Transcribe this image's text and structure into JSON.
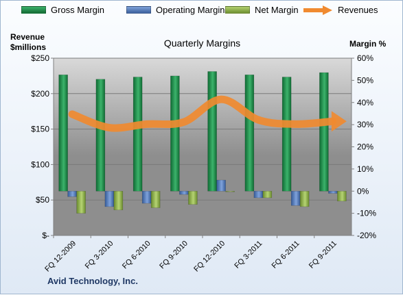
{
  "chart_data": {
    "type": "bar",
    "title": "Quarterly Margins",
    "ylabel_left": "Revenue\n$millions",
    "ylabel_right": "Margin %",
    "categories": [
      "FQ 12-2009",
      "FQ 3-2010",
      "FQ 6-2010",
      "FQ 9-2010",
      "FQ 12-2010",
      "FQ 3-2011",
      "FQ 6-2011",
      "FQ 9-2011"
    ],
    "y_left": {
      "min": 0,
      "max": 250,
      "ticks": [
        0,
        50,
        100,
        150,
        200,
        250
      ],
      "tick_labels": [
        "$-",
        "$50",
        "$100",
        "$150",
        "$200",
        "$250"
      ]
    },
    "y_right": {
      "min": -20,
      "max": 60,
      "ticks": [
        -20,
        -10,
        0,
        10,
        20,
        30,
        40,
        50,
        60
      ],
      "tick_labels": [
        "-20%",
        "-10%",
        "0%",
        "10%",
        "20%",
        "30%",
        "40%",
        "50%",
        "60%"
      ]
    },
    "series": [
      {
        "name": "Gross Margin",
        "type": "bar",
        "axis": "right",
        "color": "#1e8a4a",
        "values": [
          52.5,
          50.5,
          51.5,
          52,
          54,
          52.5,
          51.5,
          53.5
        ]
      },
      {
        "name": "Operating Margin",
        "type": "bar",
        "axis": "right",
        "color": "#4f78b8",
        "values": [
          -2.5,
          -7,
          -5.5,
          -1.5,
          5,
          -3,
          -6.5,
          -1
        ]
      },
      {
        "name": "Net Margin",
        "type": "bar",
        "axis": "right",
        "color": "#8db04a",
        "values": [
          -10,
          -8.5,
          -7.5,
          -6,
          -0.3,
          -3,
          -7,
          -4.5
        ]
      },
      {
        "name": "Revenues",
        "type": "line",
        "axis": "left",
        "color": "#f08a30",
        "values": [
          171,
          152,
          157,
          160,
          192,
          163,
          157,
          161
        ]
      }
    ],
    "grid": true,
    "legend_position": "top"
  },
  "footer": {
    "company": "Avid Technology, Inc."
  }
}
